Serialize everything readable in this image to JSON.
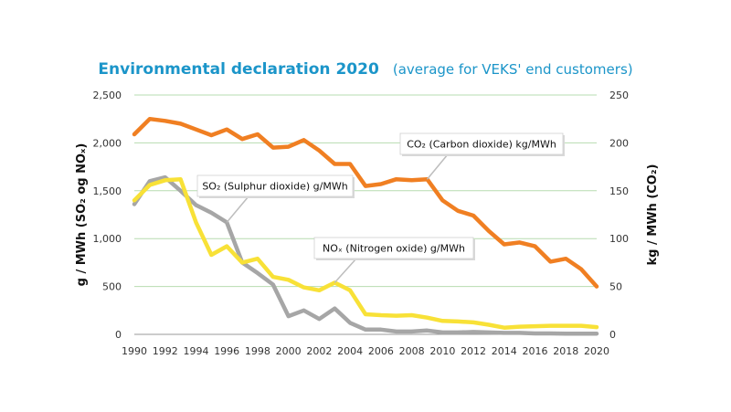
{
  "chart_data": {
    "type": "line",
    "title": "Environmental declaration 2020",
    "subtitle": "(average for VEKS' end customers)",
    "ylabel_left": "g / MWh (SO₂ og NOₓ)",
    "ylabel_right": "kg / MWh (CO₂)",
    "xlabel": "",
    "x": [
      1990,
      1991,
      1992,
      1993,
      1994,
      1995,
      1996,
      1997,
      1998,
      1999,
      2000,
      2001,
      2002,
      2003,
      2004,
      2005,
      2006,
      2007,
      2008,
      2009,
      2010,
      2011,
      2012,
      2013,
      2014,
      2015,
      2016,
      2017,
      2018,
      2019,
      2020
    ],
    "x_ticks": [
      "1990",
      "1992",
      "1994",
      "1996",
      "1998",
      "2000",
      "2002",
      "2004",
      "2006",
      "2008",
      "2010",
      "2012",
      "2014",
      "2016",
      "2018",
      "2020"
    ],
    "ylim_left": [
      0,
      2500
    ],
    "ylim_right": [
      0,
      250
    ],
    "y_ticks_left": [
      "0",
      "500",
      "1,000",
      "1,500",
      "2,000",
      "2,500"
    ],
    "y_ticks_right": [
      "0",
      "50",
      "100",
      "150",
      "200",
      "250"
    ],
    "grid": true,
    "colors": {
      "title": "#1b95c9",
      "grid": "#b7dcb0",
      "axis": "#9a9a9a"
    },
    "series": [
      {
        "name": "CO₂ (Carbon dioxide) kg/MWh",
        "axis": "right",
        "color": "#f07f22",
        "values": [
          209,
          225,
          223,
          220,
          214,
          208,
          214,
          204,
          209,
          195,
          196,
          203,
          192,
          178,
          178,
          155,
          157,
          162,
          161,
          162,
          140,
          129,
          124,
          108,
          94,
          96,
          92,
          76,
          79,
          68,
          50
        ]
      },
      {
        "name": "SO₂ (Sulphur dioxide) g/MWh",
        "axis": "left",
        "color": "#a6a6a6",
        "values": [
          1360,
          1600,
          1640,
          1500,
          1350,
          1270,
          1170,
          750,
          640,
          520,
          190,
          250,
          160,
          270,
          120,
          50,
          50,
          30,
          30,
          40,
          20,
          20,
          25,
          20,
          15,
          15,
          10,
          10,
          8,
          8,
          8
        ]
      },
      {
        "name": "NOₓ (Nitrogen oxide) g/MWh",
        "axis": "left",
        "color": "#f8e137",
        "values": [
          1400,
          1560,
          1610,
          1620,
          1170,
          830,
          920,
          750,
          790,
          600,
          570,
          490,
          460,
          540,
          460,
          210,
          200,
          195,
          200,
          175,
          140,
          135,
          125,
          100,
          70,
          80,
          85,
          90,
          90,
          90,
          75
        ]
      }
    ]
  }
}
